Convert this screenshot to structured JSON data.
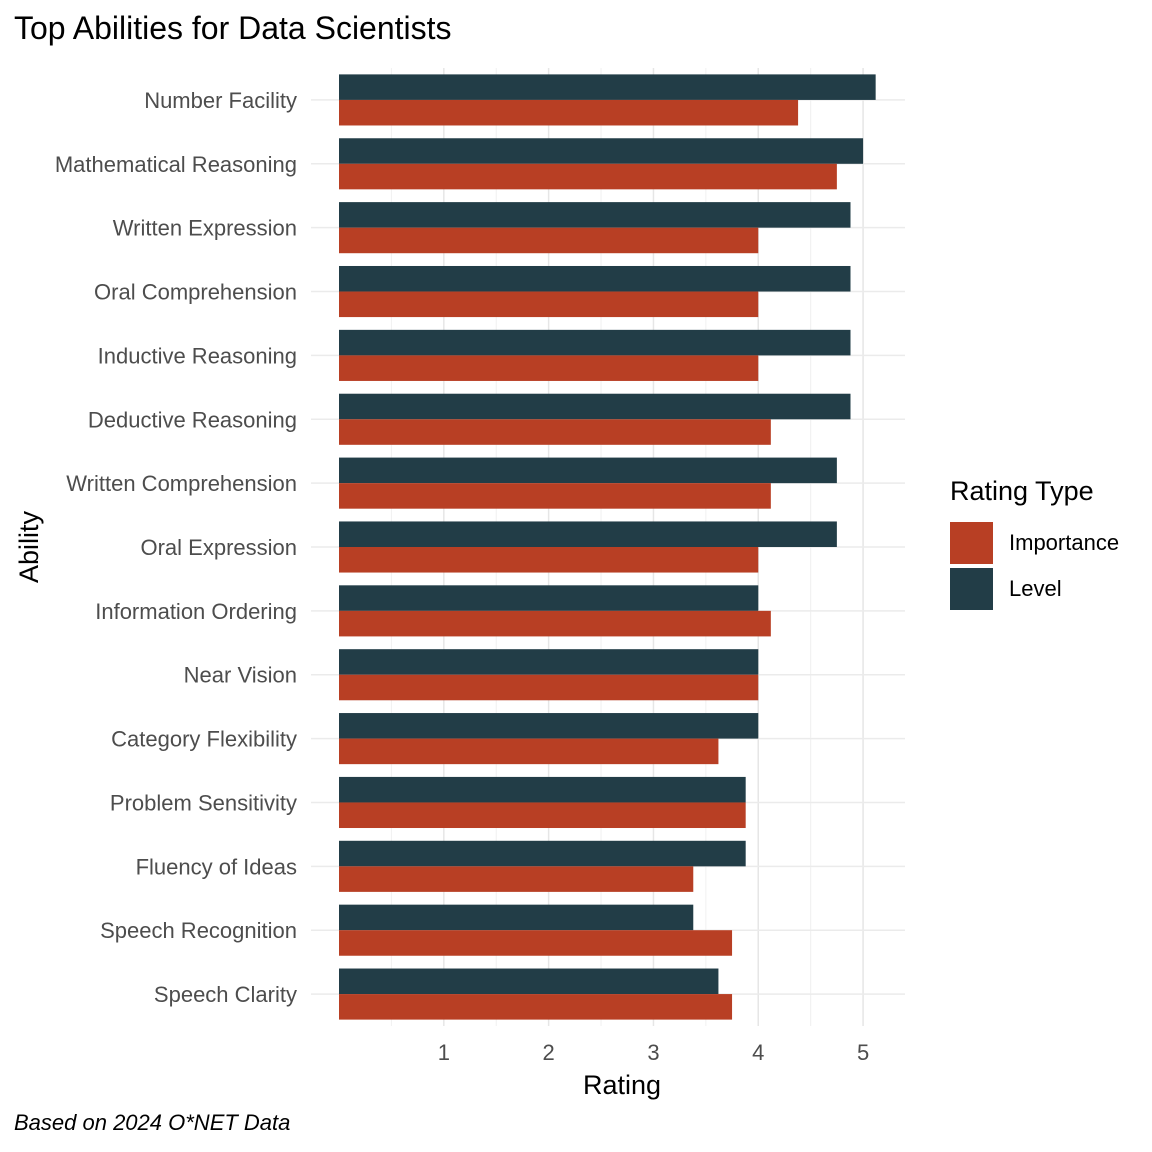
{
  "title": "Top Abilities for Data Scientists",
  "caption": "Based on 2024 O*NET Data",
  "legend": {
    "title": "Rating Type",
    "items": [
      {
        "label": "Importance",
        "color": "#b83f24"
      },
      {
        "label": "Level",
        "color": "#223d47"
      }
    ]
  },
  "chart_data": {
    "type": "bar",
    "orientation": "horizontal",
    "title": "Top Abilities for Data Scientists",
    "xlabel": "Rating",
    "ylabel": "Ability",
    "xlim": [
      0,
      5.4
    ],
    "xticks": [
      1,
      2,
      3,
      4,
      5
    ],
    "grid": true,
    "legend_position": "right",
    "categories": [
      "Number Facility",
      "Mathematical Reasoning",
      "Written Expression",
      "Oral Comprehension",
      "Inductive Reasoning",
      "Deductive Reasoning",
      "Written Comprehension",
      "Oral Expression",
      "Information Ordering",
      "Near Vision",
      "Category Flexibility",
      "Problem Sensitivity",
      "Fluency of Ideas",
      "Speech Recognition",
      "Speech Clarity"
    ],
    "series": [
      {
        "name": "Importance",
        "color": "#b83f24",
        "values": [
          4.38,
          4.75,
          4.0,
          4.0,
          4.0,
          4.12,
          4.12,
          4.0,
          4.12,
          4.0,
          3.62,
          3.88,
          3.38,
          3.75,
          3.75
        ]
      },
      {
        "name": "Level",
        "color": "#223d47",
        "values": [
          5.12,
          5.0,
          4.88,
          4.88,
          4.88,
          4.88,
          4.75,
          4.75,
          4.0,
          4.0,
          4.0,
          3.88,
          3.88,
          3.38,
          3.62
        ]
      }
    ]
  }
}
